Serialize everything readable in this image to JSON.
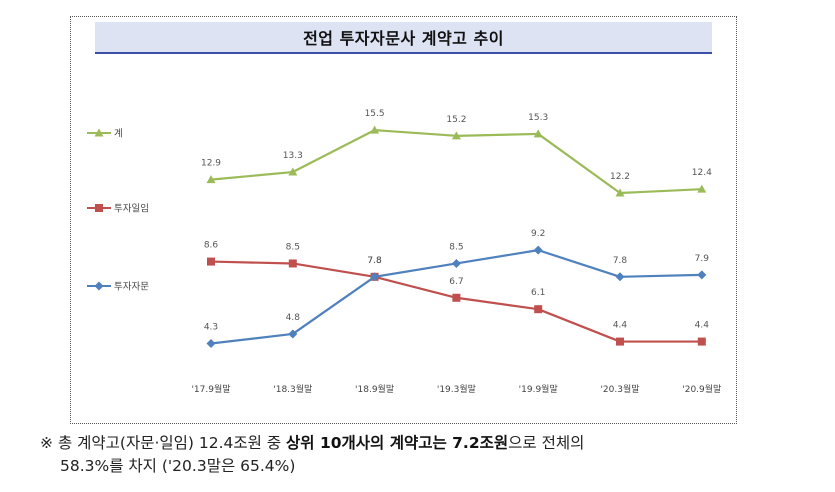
{
  "chart_data": {
    "type": "line",
    "title": "전업 투자자문사 계약고 추이",
    "categories": [
      "'17.9월말",
      "'18.3월말",
      "'18.9월말",
      "'19.3월말",
      "'19.9월말",
      "'20.3월말",
      "'20.9월말"
    ],
    "series": [
      {
        "name": "계",
        "values": [
          12.9,
          13.3,
          15.5,
          15.2,
          15.3,
          12.2,
          12.4
        ],
        "color": "#9bbb59",
        "marker": "triangle",
        "labels": [
          "12.9",
          "13.3",
          "15.5",
          "15.2",
          "15.3",
          "12.2",
          "12.4"
        ]
      },
      {
        "name": "투자일임",
        "values": [
          8.6,
          8.5,
          7.8,
          6.7,
          6.1,
          4.4,
          4.4
        ],
        "color": "#c0504d",
        "marker": "square",
        "labels": [
          "8.6",
          "8.5",
          "7.8",
          "6.7",
          "6.1",
          "4.4",
          "4.4"
        ]
      },
      {
        "name": "투자자문",
        "values": [
          4.3,
          4.8,
          7.8,
          8.5,
          9.2,
          7.8,
          7.9
        ],
        "color": "#4f81bd",
        "marker": "diamond",
        "labels": [
          "4.3",
          "4.8",
          "7.8",
          "8.5",
          "9.2",
          "7.8",
          "7.9"
        ]
      }
    ],
    "legend_position": "left",
    "grid": false
  },
  "note": {
    "symbol": "※",
    "line1_a": "총 계약고(자문·일임) 12.4조원 중 ",
    "line1_b": "상위 10개사의 계약고는 7.2조원",
    "line1_c": "으로 전체의",
    "line2": "58.3%를 차지 ('20.3말은 65.4%)"
  }
}
